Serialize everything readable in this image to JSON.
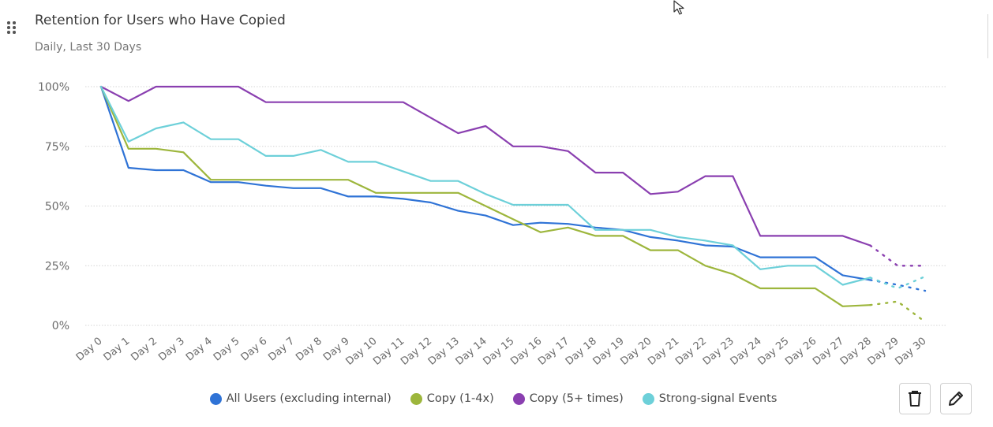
{
  "header": {
    "title": "Retention for Users who Have Copied",
    "subtitle": "Daily, Last 30 Days"
  },
  "icons": {
    "drag": "drag-handle-icon",
    "cursor": "mouse-cursor-icon",
    "delete": "trash-icon",
    "edit": "pencil-icon"
  },
  "colors": {
    "all_users": "#2f73d6",
    "copy_1_4": "#9db63c",
    "copy_5_plus": "#8a3fb0",
    "strong_signal": "#6dd0d9",
    "grid": "#d4d4d4",
    "tick_text": "#6b6b6b"
  },
  "chart_data": {
    "type": "line",
    "x": [
      "Day 0",
      "Day 1",
      "Day 2",
      "Day 3",
      "Day 4",
      "Day 5",
      "Day 6",
      "Day 7",
      "Day 8",
      "Day 9",
      "Day 10",
      "Day 11",
      "Day 12",
      "Day 13",
      "Day 14",
      "Day 15",
      "Day 16",
      "Day 17",
      "Day 18",
      "Day 19",
      "Day 20",
      "Day 21",
      "Day 22",
      "Day 23",
      "Day 24",
      "Day 25",
      "Day 26",
      "Day 27",
      "Day 28",
      "Day 29",
      "Day 30"
    ],
    "y_ticks": [
      "0%",
      "25%",
      "50%",
      "75%",
      "100%"
    ],
    "ylim": [
      0,
      100
    ],
    "grid": true,
    "legend": "bottom",
    "complete_through_index": 28,
    "series": [
      {
        "name": "All Users (excluding internal)",
        "color_key": "all_users",
        "values": [
          100,
          66,
          65,
          65,
          60,
          60,
          58.5,
          57.5,
          57.5,
          54,
          54,
          53,
          51.5,
          48,
          46,
          42,
          43,
          42.5,
          41,
          40,
          37,
          35.5,
          33.5,
          33,
          28.5,
          28.5,
          28.5,
          21,
          19,
          17,
          14.5
        ]
      },
      {
        "name": "Copy (1-4x)",
        "color_key": "copy_1_4",
        "values": [
          100,
          74,
          74,
          72.5,
          61,
          61,
          61,
          61,
          61,
          61,
          55.5,
          55.5,
          55.5,
          55.5,
          50,
          44.5,
          39,
          41,
          37.5,
          37.5,
          31.5,
          31.5,
          25,
          21.5,
          15.5,
          15.5,
          15.5,
          8,
          8.5,
          10,
          1.5
        ]
      },
      {
        "name": "Copy (5+ times)",
        "color_key": "copy_5_plus",
        "values": [
          100,
          94,
          100,
          100,
          100,
          100,
          93.5,
          93.5,
          93.5,
          93.5,
          93.5,
          93.5,
          87,
          80.5,
          83.5,
          75,
          75,
          73,
          64,
          64,
          55,
          56,
          62.5,
          62.5,
          37.5,
          37.5,
          37.5,
          37.5,
          33.5,
          25,
          25
        ]
      },
      {
        "name": "Strong-signal Events",
        "color_key": "strong_signal",
        "values": [
          100,
          77,
          82.5,
          85,
          78,
          78,
          71,
          71,
          73.5,
          68.5,
          68.5,
          64.5,
          60.5,
          60.5,
          55,
          50.5,
          50.5,
          50.5,
          40,
          40,
          40,
          37,
          35.5,
          33.5,
          23.5,
          25,
          25,
          17,
          20,
          15.5,
          20.5
        ]
      }
    ]
  }
}
